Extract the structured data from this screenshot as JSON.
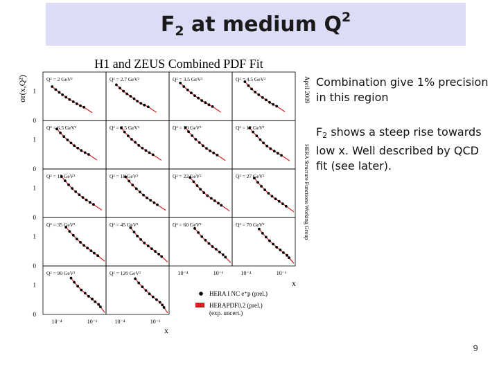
{
  "slide": {
    "title_pre": "F",
    "title_sub": "2",
    "title_mid": " at medium Q",
    "title_sup": "2",
    "note1": "Combination give 1% precision in this region",
    "note2_pre": "F",
    "note2_sub": "2",
    "note2_rest": " shows a steep rise towards low x. Well described by QCD fit (see later).",
    "page_number": "9",
    "accent_band_color": "#dcdcf6"
  },
  "chart_data": {
    "type": "scatter",
    "title": "H1 and ZEUS Combined PDF Fit",
    "ylabel": "σr(x,Q²)",
    "xlabel": "x",
    "xscale": "log",
    "xlim": [
      1e-05,
      1
    ],
    "ylim": [
      0,
      1.6
    ],
    "y_ticks": [
      "1",
      "0"
    ],
    "x_ticks_bottom": [
      "10⁻⁴",
      "10⁻¹"
    ],
    "x_ticks_right": [
      "10⁻⁴",
      "10⁻¹"
    ],
    "side_labels": [
      "April 2009",
      "HERA Structure Functions Working Group"
    ],
    "legend": {
      "placement": "bottom-right",
      "entries": [
        {
          "label": "HERA I NC e⁺p (prel.)",
          "marker": "dot",
          "color": "#000000"
        },
        {
          "label": "HERAPDF0.2 (prel.)",
          "marker": "box",
          "color": "#d42020"
        },
        {
          "label": "(exp. uncert.)",
          "marker": "none",
          "color": "#000000"
        }
      ]
    },
    "panels": [
      {
        "label": "Q² = 2 GeV²",
        "x": [
          4e-05,
          8e-05,
          0.00016,
          0.0003,
          0.0006,
          0.0012,
          0.0025,
          0.005,
          0.01,
          0.02
        ],
        "y": [
          1.12,
          1.02,
          0.93,
          0.85,
          0.77,
          0.69,
          0.62,
          0.55,
          0.49,
          0.44
        ]
      },
      {
        "label": "Q² = 2.7 GeV²",
        "x": [
          5e-05,
          0.0001,
          0.0002,
          0.0004,
          0.0008,
          0.0016,
          0.003,
          0.006,
          0.012,
          0.025
        ],
        "y": [
          1.18,
          1.07,
          0.97,
          0.88,
          0.8,
          0.72,
          0.64,
          0.57,
          0.51,
          0.45
        ]
      },
      {
        "label": "Q² = 3.5 GeV²",
        "x": [
          6e-05,
          0.00012,
          0.00025,
          0.0005,
          0.001,
          0.002,
          0.004,
          0.008,
          0.016,
          0.032
        ],
        "y": [
          1.24,
          1.12,
          1.01,
          0.91,
          0.82,
          0.74,
          0.66,
          0.59,
          0.52,
          0.46
        ]
      },
      {
        "label": "Q² = 4.5 GeV²",
        "x": [
          8e-05,
          0.00016,
          0.0003,
          0.0006,
          0.0012,
          0.0025,
          0.005,
          0.01,
          0.02,
          0.04
        ],
        "y": [
          1.28,
          1.15,
          1.04,
          0.94,
          0.85,
          0.76,
          0.68,
          0.6,
          0.53,
          0.47
        ]
      },
      {
        "label": "Q² = 6.5 GeV²",
        "x": [
          0.0001,
          0.0002,
          0.0004,
          0.0008,
          0.0016,
          0.003,
          0.006,
          0.012,
          0.025,
          0.05
        ],
        "y": [
          1.32,
          1.19,
          1.07,
          0.96,
          0.86,
          0.77,
          0.69,
          0.61,
          0.54,
          0.48
        ]
      },
      {
        "label": "Q² = 8.5 GeV²",
        "x": [
          0.00013,
          0.00025,
          0.0005,
          0.001,
          0.002,
          0.004,
          0.008,
          0.016,
          0.032,
          0.065
        ],
        "y": [
          1.36,
          1.22,
          1.09,
          0.98,
          0.88,
          0.78,
          0.69,
          0.61,
          0.54,
          0.47
        ]
      },
      {
        "label": "Q² = 10 GeV²",
        "x": [
          0.00016,
          0.0003,
          0.0006,
          0.0012,
          0.0025,
          0.005,
          0.01,
          0.02,
          0.04,
          0.08
        ],
        "y": [
          1.37,
          1.23,
          1.1,
          0.98,
          0.87,
          0.77,
          0.68,
          0.6,
          0.53,
          0.46
        ]
      },
      {
        "label": "Q² = 12 GeV²",
        "x": [
          0.0002,
          0.0004,
          0.0008,
          0.0016,
          0.003,
          0.006,
          0.012,
          0.025,
          0.05,
          0.1
        ],
        "y": [
          1.36,
          1.22,
          1.09,
          0.97,
          0.86,
          0.76,
          0.67,
          0.59,
          0.52,
          0.45
        ]
      },
      {
        "label": "Q² = 15 GeV²",
        "x": [
          0.00025,
          0.0005,
          0.001,
          0.002,
          0.004,
          0.008,
          0.016,
          0.032,
          0.065,
          0.13
        ],
        "y": [
          1.35,
          1.21,
          1.08,
          0.96,
          0.85,
          0.75,
          0.66,
          0.58,
          0.5,
          0.43
        ]
      },
      {
        "label": "Q² = 18 GeV²",
        "x": [
          0.0003,
          0.0006,
          0.0012,
          0.0025,
          0.005,
          0.01,
          0.02,
          0.04,
          0.08,
          0.15
        ],
        "y": [
          1.34,
          1.2,
          1.07,
          0.95,
          0.84,
          0.74,
          0.65,
          0.57,
          0.49,
          0.42
        ]
      },
      {
        "label": "Q² = 22 GeV²",
        "x": [
          0.0004,
          0.0008,
          0.0016,
          0.003,
          0.006,
          0.012,
          0.025,
          0.05,
          0.1,
          0.18
        ],
        "y": [
          1.32,
          1.18,
          1.05,
          0.93,
          0.82,
          0.72,
          0.63,
          0.55,
          0.47,
          0.4
        ]
      },
      {
        "label": "Q² = 27 GeV²",
        "x": [
          0.0005,
          0.001,
          0.002,
          0.004,
          0.008,
          0.016,
          0.032,
          0.065,
          0.13,
          0.25
        ],
        "y": [
          1.3,
          1.16,
          1.03,
          0.91,
          0.8,
          0.7,
          0.61,
          0.53,
          0.45,
          0.37
        ]
      },
      {
        "label": "Q² = 35 GeV²",
        "x": [
          0.0006,
          0.0012,
          0.0025,
          0.005,
          0.01,
          0.02,
          0.04,
          0.08,
          0.15,
          0.3
        ],
        "y": [
          1.28,
          1.14,
          1.01,
          0.89,
          0.78,
          0.68,
          0.59,
          0.5,
          0.42,
          0.34
        ]
      },
      {
        "label": "Q² = 45 GeV²",
        "x": [
          0.0008,
          0.0016,
          0.003,
          0.006,
          0.012,
          0.025,
          0.05,
          0.1,
          0.2,
          0.35
        ],
        "y": [
          1.26,
          1.12,
          0.99,
          0.87,
          0.76,
          0.66,
          0.57,
          0.48,
          0.39,
          0.31
        ]
      },
      {
        "label": "Q² = 60 GeV²",
        "x": [
          0.001,
          0.002,
          0.004,
          0.008,
          0.016,
          0.032,
          0.065,
          0.13,
          0.25,
          0.4
        ],
        "y": [
          1.24,
          1.1,
          0.97,
          0.85,
          0.74,
          0.64,
          0.55,
          0.46,
          0.37,
          0.29
        ]
      },
      {
        "label": "Q² = 70 GeV²",
        "x": [
          0.0013,
          0.0025,
          0.005,
          0.01,
          0.02,
          0.04,
          0.08,
          0.15,
          0.3,
          0.45
        ],
        "y": [
          1.22,
          1.08,
          0.95,
          0.83,
          0.72,
          0.62,
          0.53,
          0.44,
          0.35,
          0.27
        ]
      },
      {
        "label": "Q² = 90 GeV²",
        "x": [
          0.0016,
          0.003,
          0.006,
          0.012,
          0.025,
          0.05,
          0.1,
          0.18,
          0.35,
          0.5
        ],
        "y": [
          1.2,
          1.06,
          0.93,
          0.81,
          0.7,
          0.6,
          0.51,
          0.42,
          0.33,
          0.25
        ]
      },
      {
        "label": "Q² = 120 GeV²",
        "x": [
          0.002,
          0.004,
          0.008,
          0.016,
          0.032,
          0.065,
          0.13,
          0.25,
          0.4,
          0.55
        ],
        "y": [
          1.18,
          1.04,
          0.91,
          0.79,
          0.68,
          0.58,
          0.49,
          0.4,
          0.31,
          0.23
        ]
      }
    ]
  }
}
